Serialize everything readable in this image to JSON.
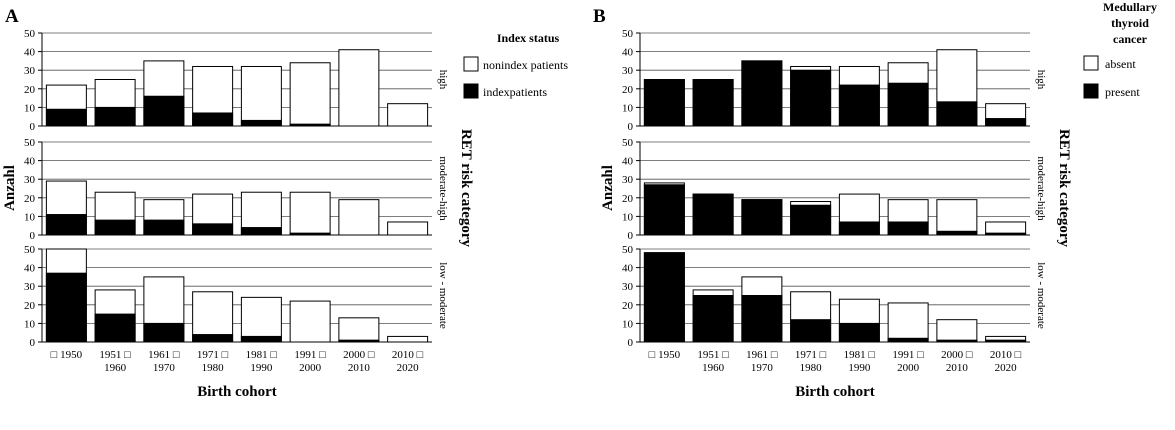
{
  "figure": {
    "panels": [
      {
        "tag": "A",
        "ylabel": "Anzahl",
        "xlabel": "Birth cohort",
        "facet_label": "RET risk category",
        "legend": {
          "title_lines": [
            "Index status"
          ],
          "items": [
            {
              "label": "nonindex patients",
              "fill": "#ffffff"
            },
            {
              "label": "indexpatients",
              "fill": "#000000"
            }
          ]
        }
      },
      {
        "tag": "B",
        "ylabel": "Anzahl",
        "xlabel": "Birth cohort",
        "facet_label": "RET risk category",
        "legend": {
          "title_lines": [
            "Medullary",
            "thyroid",
            "cancer"
          ],
          "items": [
            {
              "label": "absent",
              "fill": "#ffffff"
            },
            {
              "label": "present",
              "fill": "#000000"
            }
          ]
        }
      }
    ],
    "colors": {
      "bar_outline": "#000000",
      "grid": "#555555",
      "filled": "#000000",
      "open": "#ffffff"
    }
  },
  "chart_data": [
    {
      "type": "bar",
      "stacked": true,
      "panel": "A",
      "categories": [
        "□ 1950",
        "1951 □\n1960",
        "1961 □\n1970",
        "1971 □\n1980",
        "1981 □\n1990",
        "1991 □\n2000",
        "2000 □\n2010",
        "2010 □\n2020"
      ],
      "facets": [
        "high",
        "moderate-high",
        "low - moderate"
      ],
      "ylim": [
        0,
        50
      ],
      "yticks": [
        0,
        10,
        20,
        30,
        40,
        50
      ],
      "grid": true,
      "legend_position": "right",
      "series": [
        {
          "name": "indexpatients",
          "values": {
            "high": [
              9,
              10,
              16,
              7,
              3,
              1,
              0,
              0
            ],
            "moderate-high": [
              11,
              8,
              8,
              6,
              4,
              1,
              0,
              0
            ],
            "low - moderate": [
              37,
              15,
              10,
              4,
              3,
              0,
              1,
              0
            ]
          }
        },
        {
          "name": "nonindex patients",
          "values": {
            "high": [
              13,
              15,
              19,
              25,
              29,
              33,
              41,
              12
            ],
            "moderate-high": [
              18,
              15,
              11,
              16,
              19,
              22,
              19,
              7
            ],
            "low - moderate": [
              13,
              13,
              25,
              23,
              21,
              22,
              12,
              3
            ]
          }
        }
      ]
    },
    {
      "type": "bar",
      "stacked": true,
      "panel": "B",
      "categories": [
        "□ 1950",
        "1951 □\n1960",
        "1961 □\n1970",
        "1971 □\n1980",
        "1981 □\n1990",
        "1991 □\n2000",
        "2000 □\n2010",
        "2010 □\n2020"
      ],
      "facets": [
        "high",
        "moderate-high",
        "low - moderate"
      ],
      "ylim": [
        0,
        50
      ],
      "yticks": [
        0,
        10,
        20,
        30,
        40,
        50
      ],
      "grid": true,
      "legend_position": "right",
      "series": [
        {
          "name": "present",
          "values": {
            "high": [
              25,
              25,
              35,
              30,
              22,
              23,
              13,
              4
            ],
            "moderate-high": [
              27,
              22,
              19,
              16,
              7,
              7,
              2,
              1
            ],
            "low - moderate": [
              48,
              25,
              25,
              12,
              10,
              2,
              1,
              1
            ]
          }
        },
        {
          "name": "absent",
          "values": {
            "high": [
              0,
              0,
              0,
              2,
              10,
              11,
              28,
              8
            ],
            "moderate-high": [
              1,
              0,
              0,
              2,
              15,
              12,
              17,
              6
            ],
            "low - moderate": [
              0,
              3,
              10,
              15,
              13,
              19,
              11,
              2
            ]
          }
        }
      ]
    }
  ]
}
